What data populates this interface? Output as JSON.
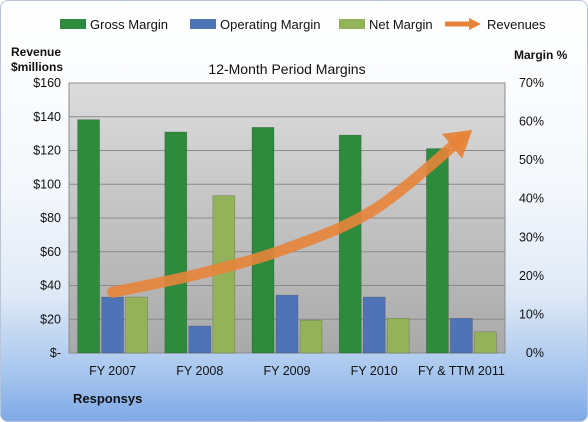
{
  "chart_data": {
    "type": "bar",
    "title": "12-Month Period Margins",
    "company": "Responsys",
    "categories": [
      "FY 2007",
      "FY 2008",
      "FY 2009",
      "FY 2010",
      "FY & TTM 2011"
    ],
    "left_axis": {
      "title_line1": "Revenue",
      "title_line2": "$millions",
      "ylim": [
        0,
        160
      ],
      "ticks": [
        {
          "value": 0,
          "label": "$-"
        },
        {
          "value": 20,
          "label": "$20"
        },
        {
          "value": 40,
          "label": "$40"
        },
        {
          "value": 60,
          "label": "$60"
        },
        {
          "value": 80,
          "label": "$80"
        },
        {
          "value": 100,
          "label": "$100"
        },
        {
          "value": 120,
          "label": "$120"
        },
        {
          "value": 140,
          "label": "$140"
        },
        {
          "value": 160,
          "label": "$160"
        }
      ]
    },
    "right_axis": {
      "title": "Margin %",
      "ylim": [
        0,
        70
      ],
      "ticks": [
        {
          "value": 0,
          "label": "0%"
        },
        {
          "value": 10,
          "label": "10%"
        },
        {
          "value": 20,
          "label": "20%"
        },
        {
          "value": 30,
          "label": "30%"
        },
        {
          "value": 40,
          "label": "40%"
        },
        {
          "value": 50,
          "label": "50%"
        },
        {
          "value": 60,
          "label": "60%"
        },
        {
          "value": 70,
          "label": "70%"
        }
      ]
    },
    "series": [
      {
        "name": "Gross Margin",
        "axis": "right",
        "color": "#2e8b3e",
        "values": [
          60.5,
          57.3,
          58.5,
          56.5,
          53
        ]
      },
      {
        "name": "Operating Margin",
        "axis": "right",
        "color": "#4f74b5",
        "values": [
          14.5,
          7,
          15,
          14.5,
          9
        ]
      },
      {
        "name": "Net Margin",
        "axis": "right",
        "color": "#93b25a",
        "values": [
          14.5,
          40.8,
          8.5,
          9,
          5.5
        ]
      },
      {
        "name": "Revenues",
        "axis": "left",
        "type": "line",
        "color": "#e8843a",
        "values": [
          36,
          47,
          62,
          85,
          127
        ]
      }
    ],
    "legend_position": "top",
    "grid": true
  }
}
